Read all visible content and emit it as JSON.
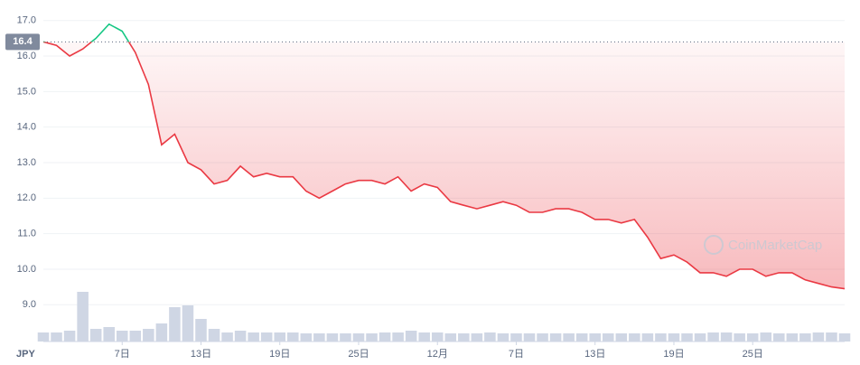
{
  "chart_data": {
    "type": "line",
    "currency": "JPY",
    "watermark": "CoinMarketCap",
    "baseline": 16.4,
    "categories": [
      null,
      null,
      null,
      null,
      null,
      null,
      "7日",
      null,
      null,
      null,
      null,
      null,
      "13日",
      null,
      null,
      null,
      null,
      null,
      "19日",
      null,
      null,
      null,
      null,
      null,
      "25日",
      null,
      null,
      null,
      null,
      null,
      "12月",
      null,
      null,
      null,
      null,
      null,
      "7日",
      null,
      null,
      null,
      null,
      null,
      "13日",
      null,
      null,
      null,
      null,
      null,
      "19日",
      null,
      null,
      null,
      null,
      null,
      "25日",
      null,
      null,
      null,
      null,
      null,
      null,
      null
    ],
    "series": [
      {
        "color": "#ea3943",
        "above_color": "#16c784",
        "values": [
          16.4,
          16.3,
          16.0,
          16.2,
          16.5,
          16.9,
          16.7,
          16.1,
          15.2,
          13.5,
          13.8,
          13.0,
          12.8,
          12.4,
          12.5,
          12.9,
          12.6,
          12.7,
          12.6,
          12.6,
          12.2,
          12.0,
          12.2,
          12.4,
          12.5,
          12.5,
          12.4,
          12.6,
          12.2,
          12.4,
          12.3,
          11.9,
          11.8,
          11.7,
          11.8,
          11.9,
          11.8,
          11.6,
          11.6,
          11.7,
          11.7,
          11.6,
          11.4,
          11.4,
          11.3,
          11.4,
          10.9,
          10.3,
          10.4,
          10.2,
          9.9,
          9.9,
          9.8,
          10.0,
          10.0,
          9.8,
          9.9,
          9.9,
          9.7,
          9.6,
          9.5,
          9.45
        ]
      }
    ],
    "volume": {
      "color": "#cfd6e4",
      "values": [
        10,
        10,
        12,
        55,
        14,
        16,
        12,
        12,
        14,
        20,
        38,
        40,
        25,
        14,
        10,
        12,
        10,
        10,
        10,
        10,
        9,
        9,
        9,
        9,
        9,
        9,
        10,
        10,
        12,
        10,
        10,
        9,
        9,
        9,
        10,
        9,
        9,
        9,
        9,
        9,
        9,
        9,
        9,
        9,
        9,
        9,
        9,
        9,
        9,
        9,
        9,
        10,
        10,
        9,
        9,
        10,
        9,
        9,
        9,
        10,
        10,
        9
      ]
    },
    "ylim": [
      8.6,
      17.4
    ],
    "yticks": [
      {
        "value": 9,
        "label": "9.0"
      },
      {
        "value": 10,
        "label": "10.0"
      },
      {
        "value": 11,
        "label": "11.0"
      },
      {
        "value": 12,
        "label": "12.0"
      },
      {
        "value": 13,
        "label": "13.0"
      },
      {
        "value": 14,
        "label": "14.0"
      },
      {
        "value": 15,
        "label": "15.0"
      },
      {
        "value": 16,
        "label": "16.0"
      },
      {
        "value": 17,
        "label": "17.0"
      }
    ],
    "grid": true
  }
}
